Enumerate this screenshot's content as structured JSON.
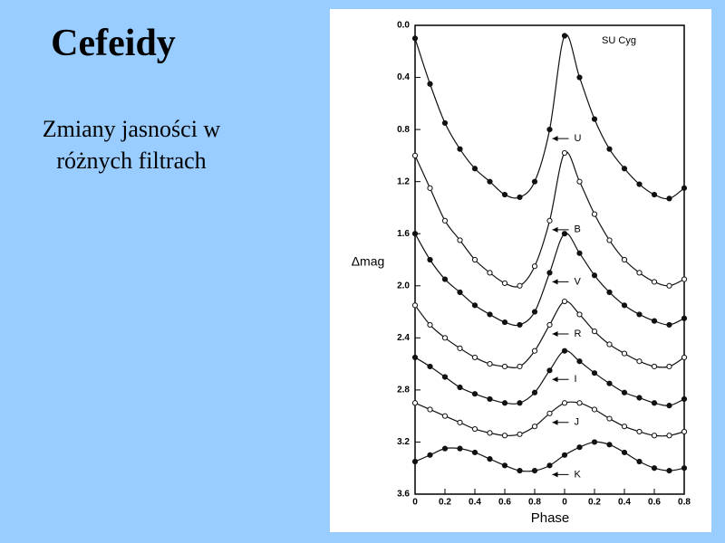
{
  "slide": {
    "title": "Cefeidy",
    "subtitle_lines": [
      "Zmiany jasności w",
      "różnych filtrach"
    ]
  },
  "chart_data": {
    "type": "line",
    "annotation": "SU Cyg",
    "xlabel": "Phase",
    "ylabel": "Δmag",
    "x": [
      0,
      0.1,
      0.2,
      0.3,
      0.4,
      0.5,
      0.6,
      0.7,
      0.8,
      0.9,
      1.0,
      1.1,
      1.2,
      1.3,
      1.4,
      1.5,
      1.6,
      1.7,
      1.8
    ],
    "xlim": [
      0,
      1.8
    ],
    "xticks": [
      0,
      0.2,
      0.4,
      0.6,
      0.8,
      {
        "value": 1.0,
        "label": "0"
      },
      {
        "value": 1.2,
        "label": "0.2"
      },
      {
        "value": 1.4,
        "label": "0.4"
      },
      {
        "value": 1.6,
        "label": "0.6"
      },
      {
        "value": 1.8,
        "label": "0.8"
      }
    ],
    "ylim": [
      3.6,
      0
    ],
    "inverted_y": true,
    "yticks": [
      {
        "value": 0,
        "label": "0.0"
      },
      0.4,
      0.8,
      1.2,
      1.6,
      {
        "value": 2,
        "label": "2.0"
      },
      2.4,
      2.8,
      3.2,
      3.6
    ],
    "series": [
      {
        "name": "U",
        "color": "#111111",
        "marker": "filled",
        "values": [
          0.1,
          0.45,
          0.75,
          0.95,
          1.1,
          1.2,
          1.3,
          1.32,
          1.2,
          0.8,
          0.08,
          0.4,
          0.72,
          0.95,
          1.1,
          1.22,
          1.3,
          1.33,
          1.25
        ]
      },
      {
        "name": "B",
        "color": "#111111",
        "marker": "open",
        "values": [
          1.0,
          1.25,
          1.5,
          1.65,
          1.8,
          1.9,
          1.98,
          2.0,
          1.85,
          1.5,
          0.98,
          1.2,
          1.45,
          1.65,
          1.8,
          1.9,
          1.97,
          2.0,
          1.95
        ]
      },
      {
        "name": "V",
        "color": "#111111",
        "marker": "filled",
        "values": [
          1.6,
          1.8,
          1.95,
          2.05,
          2.15,
          2.22,
          2.28,
          2.3,
          2.2,
          1.9,
          1.6,
          1.75,
          1.92,
          2.05,
          2.15,
          2.22,
          2.27,
          2.3,
          2.25
        ]
      },
      {
        "name": "R",
        "color": "#111111",
        "marker": "open",
        "values": [
          2.15,
          2.3,
          2.4,
          2.48,
          2.55,
          2.6,
          2.62,
          2.62,
          2.5,
          2.3,
          2.12,
          2.22,
          2.35,
          2.45,
          2.52,
          2.58,
          2.62,
          2.62,
          2.55
        ]
      },
      {
        "name": "I",
        "color": "#111111",
        "marker": "filled",
        "values": [
          2.55,
          2.62,
          2.7,
          2.78,
          2.83,
          2.87,
          2.9,
          2.9,
          2.82,
          2.65,
          2.5,
          2.58,
          2.67,
          2.75,
          2.82,
          2.86,
          2.9,
          2.92,
          2.87
        ]
      },
      {
        "name": "J",
        "color": "#111111",
        "marker": "open",
        "values": [
          2.9,
          2.95,
          3.0,
          3.05,
          3.1,
          3.13,
          3.15,
          3.14,
          3.08,
          2.98,
          2.9,
          2.9,
          2.95,
          3.02,
          3.08,
          3.12,
          3.15,
          3.15,
          3.12
        ]
      },
      {
        "name": "K",
        "color": "#111111",
        "marker": "filled",
        "values": [
          3.35,
          3.3,
          3.25,
          3.25,
          3.28,
          3.33,
          3.38,
          3.42,
          3.42,
          3.38,
          3.3,
          3.24,
          3.2,
          3.22,
          3.28,
          3.35,
          3.4,
          3.42,
          3.4
        ]
      }
    ]
  }
}
